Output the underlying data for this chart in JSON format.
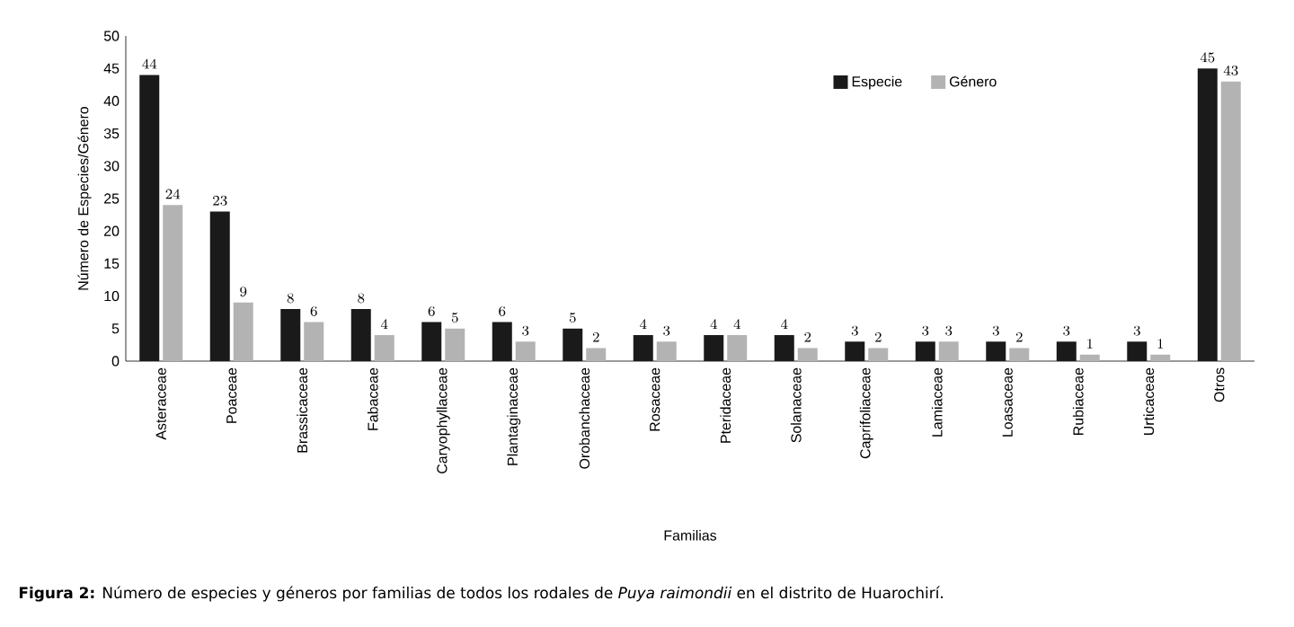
{
  "chart_data": {
    "type": "bar",
    "xlabel": "Familias",
    "ylabel": "Número de Especies/Género",
    "categories": [
      "Asteraceae",
      "Poaceae",
      "Brassicaceae",
      "Fabaceae",
      "Caryophyllaceae",
      "Plantaginaceae",
      "Orobanchaceae",
      "Rosaceae",
      "Pteridaceae",
      "Solanaceae",
      "Caprifoliaceae",
      "Lamiaceae",
      "Loasaceae",
      "Rubiaceae",
      "Urticaceae",
      "Otros"
    ],
    "series": [
      {
        "name": "Especie",
        "color": "#1a1a1a",
        "values": [
          44,
          23,
          8,
          8,
          6,
          6,
          5,
          4,
          4,
          4,
          3,
          3,
          3,
          3,
          3,
          45
        ]
      },
      {
        "name": "Género",
        "color": "#b3b3b3",
        "values": [
          24,
          9,
          6,
          4,
          5,
          3,
          2,
          3,
          4,
          2,
          2,
          3,
          2,
          1,
          1,
          43
        ]
      }
    ],
    "ylim": [
      0,
      50
    ],
    "yticks": [
      0,
      5,
      10,
      15,
      20,
      25,
      30,
      35,
      40,
      45,
      50
    ],
    "data_labels": true,
    "legend": "top right",
    "grid": false,
    "annotations": [
      "**Figura 2:** Número de especies y géneros por familias de todos los rodales de *Puya raimondii* en el distrito de Huarochirí."
    ]
  }
}
